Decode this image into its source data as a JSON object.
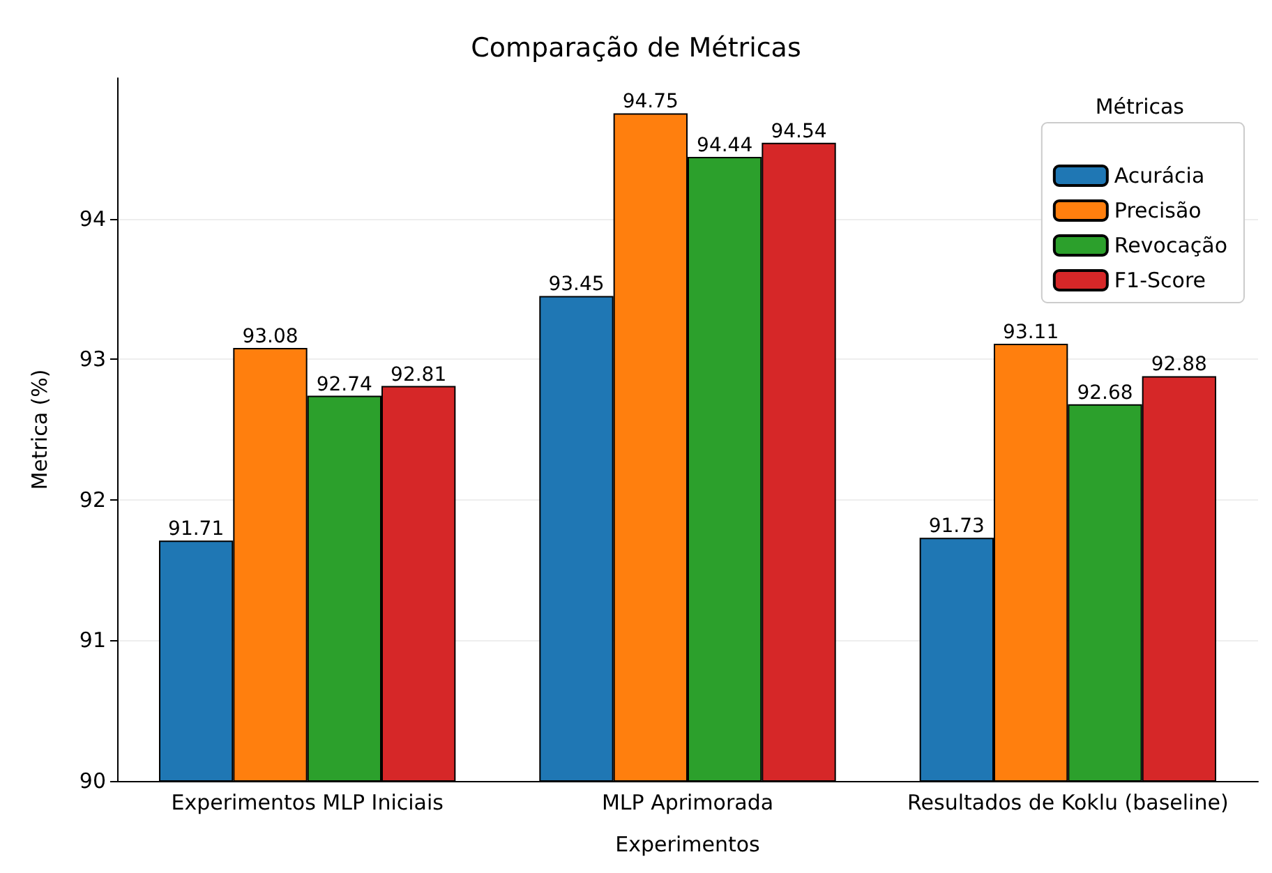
{
  "chart_data": {
    "type": "bar",
    "title": "Comparação de Métricas",
    "xlabel": "Experimentos",
    "ylabel": "Metrica (%)",
    "legend_title": "Métricas",
    "categories": [
      "Experimentos MLP Iniciais",
      "MLP Aprimorada",
      "Resultados de Koklu (baseline)"
    ],
    "series": [
      {
        "name": "Acurácia",
        "color": "#1f77b4",
        "values": [
          91.71,
          93.45,
          91.73
        ]
      },
      {
        "name": "Precisão",
        "color": "#ff7f0e",
        "values": [
          93.08,
          94.75,
          93.11
        ]
      },
      {
        "name": "Revocação",
        "color": "#2ca02c",
        "values": [
          92.74,
          94.44,
          92.68
        ]
      },
      {
        "name": "F1-Score",
        "color": "#d62728",
        "values": [
          92.81,
          94.54,
          92.88
        ]
      }
    ],
    "ylim": [
      90,
      95
    ],
    "yticks": [
      90,
      91,
      92,
      93,
      94
    ],
    "grid": "y",
    "legend": "top right",
    "data_labels": true
  }
}
